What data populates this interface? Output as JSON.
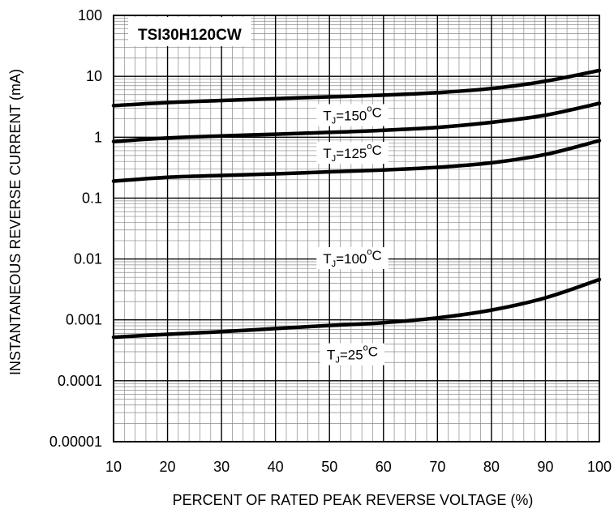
{
  "chart_data": {
    "type": "line",
    "title": "TSI30H120CW",
    "xlabel": "PERCENT OF RATED PEAK REVERSE VOLTAGE (%)",
    "ylabel": "INSTANTANEOUS  REVERSE CURRENT (mA)",
    "x_scale": "linear",
    "y_scale": "log",
    "xlim": [
      10,
      100
    ],
    "ylim": [
      1e-05,
      100
    ],
    "x_ticks": [
      10,
      20,
      30,
      40,
      50,
      60,
      70,
      80,
      90,
      100
    ],
    "x_tick_labels": [
      "10",
      "20",
      "30",
      "40",
      "50",
      "60",
      "70",
      "80",
      "90",
      "100"
    ],
    "y_ticks": [
      1e-05,
      0.0001,
      0.001,
      0.01,
      0.1,
      1,
      10,
      100
    ],
    "y_tick_labels": [
      "0.00001",
      "0.0001",
      "0.001",
      "0.01",
      "0.1",
      "1",
      "10",
      "100"
    ],
    "grid": true,
    "x": [
      10,
      20,
      30,
      40,
      50,
      60,
      70,
      80,
      90,
      100
    ],
    "series": [
      {
        "name": "TJ=150°C",
        "label": {
          "T": "T",
          "sub": "J",
          "eq": "=150",
          "deg": "o",
          "unit": "C"
        },
        "values": [
          3.3,
          3.7,
          4.0,
          4.3,
          4.6,
          4.9,
          5.4,
          6.3,
          8.3,
          12.5
        ]
      },
      {
        "name": "TJ=125°C",
        "label": {
          "T": "T",
          "sub": "J",
          "eq": "=125",
          "deg": "o",
          "unit": "C"
        },
        "values": [
          0.85,
          0.97,
          1.05,
          1.12,
          1.2,
          1.3,
          1.45,
          1.75,
          2.3,
          3.6
        ]
      },
      {
        "name": "TJ=100°C",
        "label": {
          "T": "T",
          "sub": "J",
          "eq": "=100",
          "deg": "o",
          "unit": "C"
        },
        "values": [
          0.19,
          0.22,
          0.235,
          0.25,
          0.27,
          0.29,
          0.32,
          0.38,
          0.52,
          0.88
        ]
      },
      {
        "name": "TJ=25°C",
        "label": {
          "T": "T",
          "sub": "J",
          "eq": "=25",
          "deg": "o",
          "unit": "C"
        },
        "values": [
          0.00052,
          0.00058,
          0.00064,
          0.00072,
          0.00081,
          0.0009,
          0.00108,
          0.00145,
          0.0023,
          0.0046
        ]
      }
    ]
  }
}
